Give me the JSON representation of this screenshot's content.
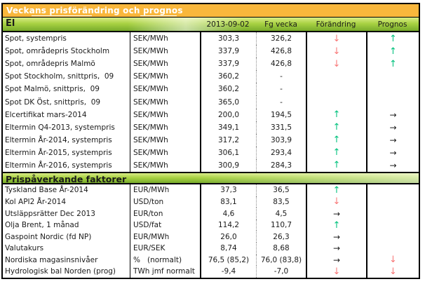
{
  "title": "Veckans prisförändring och prognos",
  "columns": {
    "date": "2013-09-02",
    "prev": "Fg vecka",
    "change": "Förändring",
    "forecast": "Prognos"
  },
  "arrow_glyphs": {
    "up": "↑",
    "down": "↓",
    "flat": "→"
  },
  "colors": {
    "title_bg": "#f9b73c",
    "section_green": "#a9d243",
    "arrow_up": "#00c17c",
    "arrow_down": "#f87878",
    "arrow_flat": "#1a1a1a"
  },
  "sections": [
    {
      "label": "El",
      "rows": [
        {
          "label": "Spot, systempris",
          "unit": "SEK/MWh",
          "current": "303,3",
          "prev": "326,2",
          "change": "down",
          "forecast": "up"
        },
        {
          "label": "Spot, områdepris Stockholm",
          "unit": "SEK/MWh",
          "current": "337,9",
          "prev": "426,8",
          "change": "down",
          "forecast": "up"
        },
        {
          "label": "Spot, områdepris Malmö",
          "unit": "SEK/MWh",
          "current": "337,9",
          "prev": "426,8",
          "change": "down",
          "forecast": "up"
        },
        {
          "label": "Spot Stockholm, snittpris,  09",
          "unit": "SEK/MWh",
          "current": "360,2",
          "prev": "-",
          "change": "",
          "forecast": ""
        },
        {
          "label": "Spot Malmö, snittpris,  09",
          "unit": "SEK/MWh",
          "current": "360,2",
          "prev": "-",
          "change": "",
          "forecast": ""
        },
        {
          "label": "Spot DK Öst, snittpris,  09",
          "unit": "SEK/MWh",
          "current": "365,0",
          "prev": "-",
          "change": "",
          "forecast": ""
        },
        {
          "label": "Elcertifikat mars-2014",
          "unit": "SEK/MWh",
          "current": "200,0",
          "prev": "194,5",
          "change": "up",
          "forecast": "flat"
        },
        {
          "label": "Eltermin Q4-2013, systempris",
          "unit": "SEK/MWh",
          "current": "349,1",
          "prev": "331,5",
          "change": "up",
          "forecast": "flat"
        },
        {
          "label": "Eltermin År-2014, systempris",
          "unit": "SEK/MWh",
          "current": "317,2",
          "prev": "303,9",
          "change": "up",
          "forecast": "flat"
        },
        {
          "label": "Eltermin År-2015, systempris",
          "unit": "SEK/MWh",
          "current": "306,1",
          "prev": "293,4",
          "change": "up",
          "forecast": "flat"
        },
        {
          "label": "Eltermin År-2016, systempris",
          "unit": "SEK/MWh",
          "current": "300,9",
          "prev": "284,3",
          "change": "up",
          "forecast": "flat"
        }
      ]
    },
    {
      "label": "Prispåverkande faktorer",
      "rows": [
        {
          "label": "Tyskland Base År-2014",
          "unit": "EUR/MWh",
          "current": "37,3",
          "prev": "36,5",
          "change": "up",
          "forecast": ""
        },
        {
          "label": "Kol API2 År-2014",
          "unit": "USD/ton",
          "current": "83,1",
          "prev": "83,5",
          "change": "down",
          "forecast": ""
        },
        {
          "label": "Utsläppsrätter Dec 2013",
          "unit": "EUR/ton",
          "current": "4,6",
          "prev": "4,5",
          "change": "flat",
          "forecast": ""
        },
        {
          "label": "Olja Brent, 1 månad",
          "unit": "USD/fat",
          "current": "114,2",
          "prev": "110,7",
          "change": "up",
          "forecast": ""
        },
        {
          "label": "Gaspoint Nordic (fd NP)",
          "unit": "EUR/MWh",
          "current": "26,0",
          "prev": "26,3",
          "change": "flat",
          "forecast": ""
        },
        {
          "label": "Valutakurs",
          "unit": "EUR/SEK",
          "current": "8,74",
          "prev": "8,68",
          "change": "flat",
          "forecast": ""
        },
        {
          "label": "Nordiska magasinsnivåer",
          "unit": "%   (normalt)",
          "current": "76,5 (85,2)",
          "prev": "76,0 (83,8)",
          "change": "flat",
          "forecast": "down"
        },
        {
          "label": "Hydrologisk bal Norden (prog)",
          "unit": "TWh jmf normalt",
          "current": "-9,4",
          "prev": "-7,0",
          "change": "down",
          "forecast": "down"
        }
      ]
    }
  ]
}
